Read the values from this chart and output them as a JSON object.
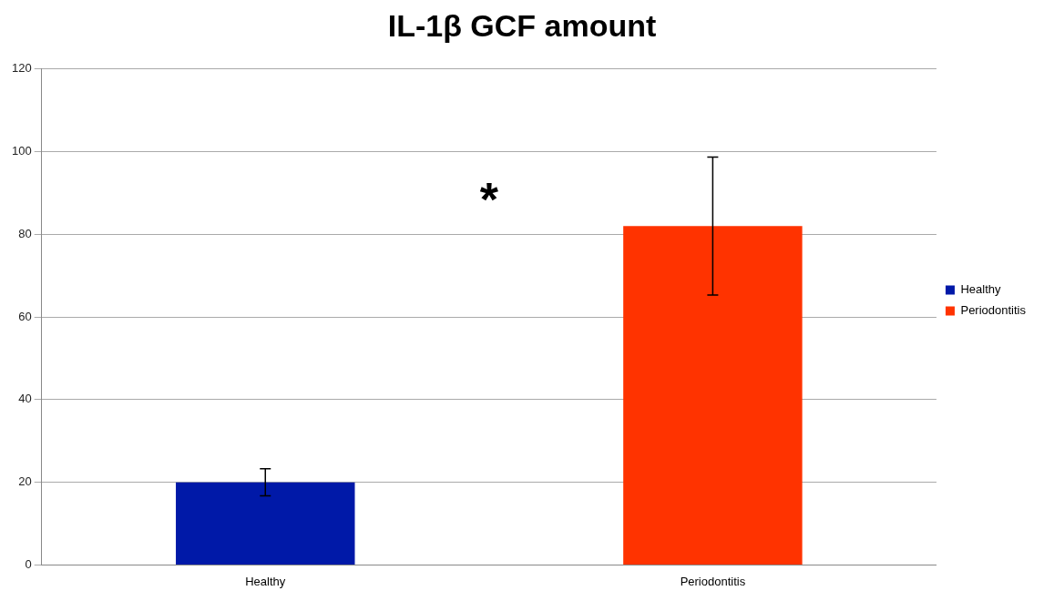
{
  "chart_data": {
    "type": "bar",
    "title": "IL-1β GCF amount",
    "categories": [
      "Healthy",
      "Periodontitis"
    ],
    "series": [
      {
        "name": "Healthy",
        "color": "#0019a8",
        "values": [
          20,
          null
        ],
        "errors": [
          3.3,
          null
        ]
      },
      {
        "name": "Periodontitis",
        "color": "#ff3300",
        "values": [
          null,
          82
        ],
        "errors": [
          null,
          16.7
        ]
      }
    ],
    "ylim": [
      0,
      120
    ],
    "yticks": [
      0,
      20,
      40,
      60,
      80,
      100,
      120
    ],
    "grid": "y",
    "legend": "right",
    "annotations": [
      "*"
    ]
  }
}
